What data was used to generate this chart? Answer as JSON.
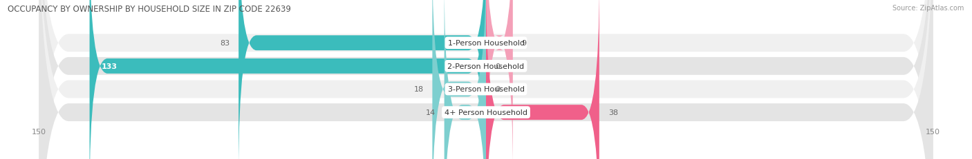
{
  "title": "OCCUPANCY BY OWNERSHIP BY HOUSEHOLD SIZE IN ZIP CODE 22639",
  "source": "Source: ZipAtlas.com",
  "categories": [
    "1-Person Household",
    "2-Person Household",
    "3-Person Household",
    "4+ Person Household"
  ],
  "owner_values": [
    83,
    133,
    18,
    14
  ],
  "renter_values": [
    9,
    0,
    0,
    38
  ],
  "owner_color_dark": "#3bbcbc",
  "owner_color_light": "#7dcfcf",
  "renter_color_dark": "#f0608a",
  "renter_color_light": "#f4a0b8",
  "row_bg_light": "#f0f0f0",
  "row_bg_dark": "#e4e4e4",
  "xlim": 150,
  "value_inside_color": "#ffffff",
  "value_outside_color": "#888888"
}
